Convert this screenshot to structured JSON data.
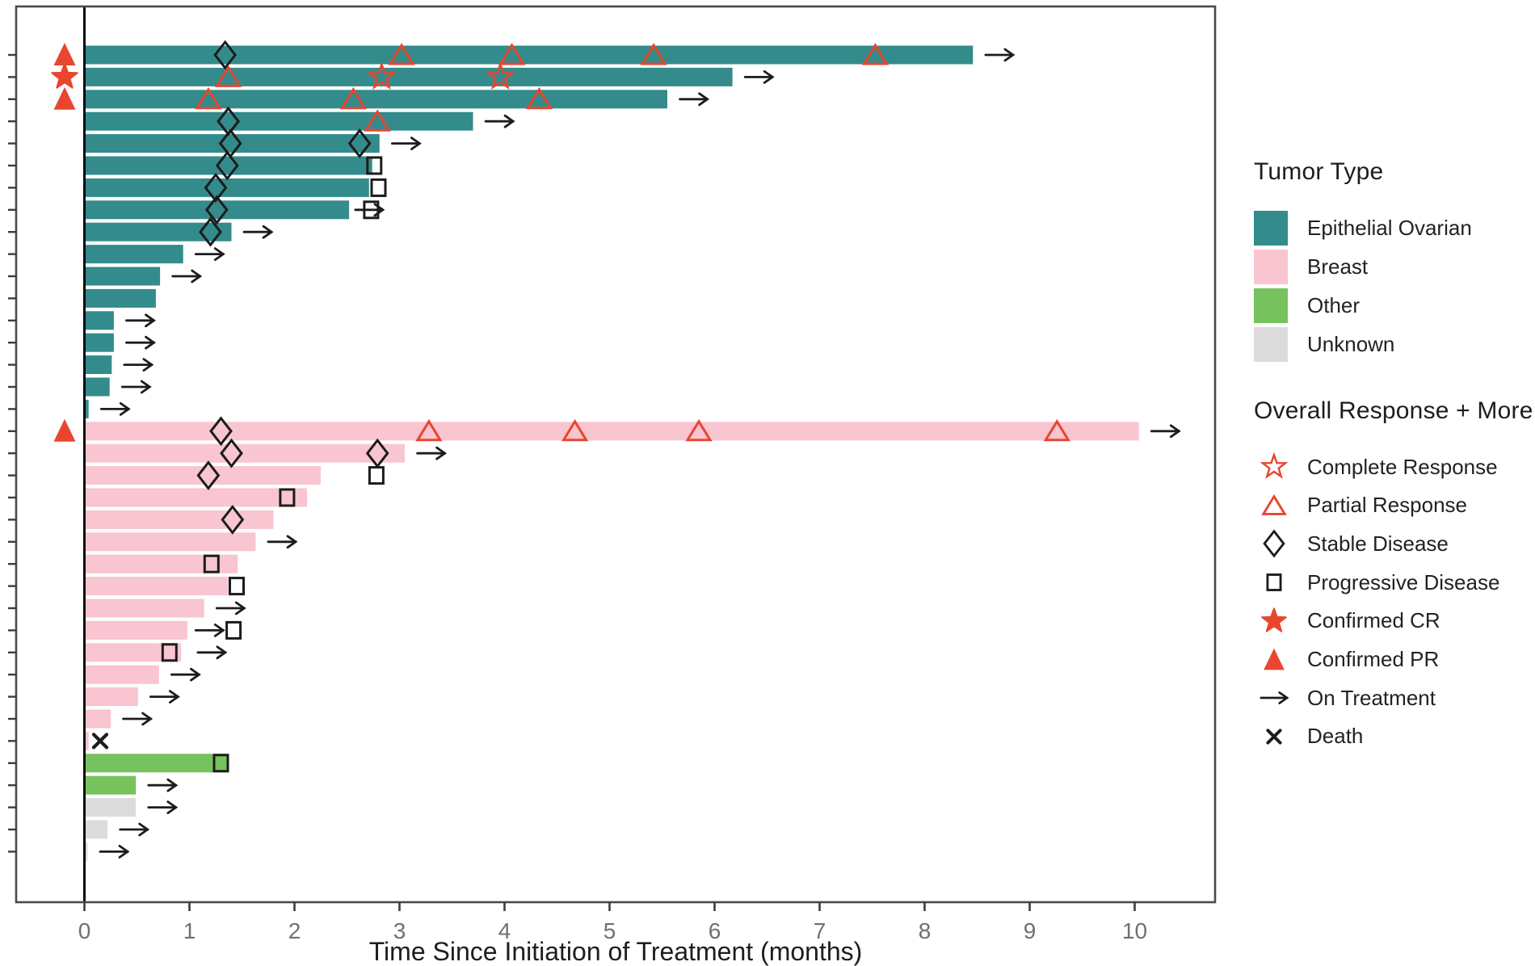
{
  "chart_data": {
    "type": "bar",
    "subtype": "swimmer-plot",
    "xlabel": "Time Since Initiation of Treatment (months)",
    "x_ticks": [
      "0",
      "1",
      "2",
      "3",
      "4",
      "5",
      "6",
      "7",
      "8",
      "9",
      "10"
    ],
    "xlim": [
      -0.65,
      10.75
    ],
    "grid": false,
    "colors": {
      "Epithelial Ovarian": "#348b8b",
      "Breast": "#f8c5d1",
      "Other": "#76c25d",
      "Unknown": "#dcdcdc",
      "response_red": "#e8462f",
      "marker_black": "#1c1c1c",
      "axis_text": "#707070",
      "spine": "#4a4a4a"
    },
    "legend_tumor": {
      "title": "Tumor Type",
      "entries": [
        {
          "label": "Epithelial Ovarian",
          "color": "#348b8b"
        },
        {
          "label": "Breast",
          "color": "#f8c5d1"
        },
        {
          "label": "Other",
          "color": "#76c25d"
        },
        {
          "label": "Unknown",
          "color": "#dcdcdc"
        }
      ]
    },
    "legend_response": {
      "title": "Overall Response + More",
      "entries": [
        {
          "marker": "complete-response",
          "label": "Complete Response"
        },
        {
          "marker": "partial-response",
          "label": "Partial Response"
        },
        {
          "marker": "stable-disease",
          "label": "Stable Disease"
        },
        {
          "marker": "progressive-disease",
          "label": "Progressive Disease"
        },
        {
          "marker": "confirmed-cr",
          "label": "Confirmed CR"
        },
        {
          "marker": "confirmed-pr",
          "label": "Confirmed PR"
        },
        {
          "marker": "on-treatment",
          "label": "On Treatment"
        },
        {
          "marker": "death",
          "label": "Death"
        }
      ]
    },
    "rows": [
      {
        "tumor": "Epithelial Ovarian",
        "months": 8.46,
        "on_treatment": true,
        "confirmed": "PR",
        "events": [
          {
            "type": "Stable Disease",
            "month": 1.34
          },
          {
            "type": "Partial Response",
            "month": 3.02
          },
          {
            "type": "Partial Response",
            "month": 4.07
          },
          {
            "type": "Partial Response",
            "month": 5.42
          },
          {
            "type": "Partial Response",
            "month": 7.53
          }
        ]
      },
      {
        "tumor": "Epithelial Ovarian",
        "months": 6.17,
        "on_treatment": true,
        "confirmed": "CR",
        "events": [
          {
            "type": "Partial Response",
            "month": 1.37
          },
          {
            "type": "Complete Response",
            "month": 2.83
          },
          {
            "type": "Complete Response",
            "month": 3.96
          }
        ]
      },
      {
        "tumor": "Epithelial Ovarian",
        "months": 5.55,
        "on_treatment": true,
        "confirmed": "PR",
        "events": [
          {
            "type": "Partial Response",
            "month": 1.18
          },
          {
            "type": "Partial Response",
            "month": 2.56
          },
          {
            "type": "Partial Response",
            "month": 4.33
          }
        ]
      },
      {
        "tumor": "Epithelial Ovarian",
        "months": 3.7,
        "on_treatment": true,
        "events": [
          {
            "type": "Stable Disease",
            "month": 1.37
          },
          {
            "type": "Partial Response",
            "month": 2.79
          }
        ]
      },
      {
        "tumor": "Epithelial Ovarian",
        "months": 2.81,
        "on_treatment": true,
        "events": [
          {
            "type": "Stable Disease",
            "month": 1.39
          },
          {
            "type": "Stable Disease",
            "month": 2.62
          }
        ]
      },
      {
        "tumor": "Epithelial Ovarian",
        "months": 2.74,
        "events": [
          {
            "type": "Stable Disease",
            "month": 1.36
          },
          {
            "type": "Progressive Disease",
            "month": 2.76
          }
        ]
      },
      {
        "tumor": "Epithelial Ovarian",
        "months": 2.71,
        "events": [
          {
            "type": "Stable Disease",
            "month": 1.25
          },
          {
            "type": "Progressive Disease",
            "month": 2.8
          }
        ]
      },
      {
        "tumor": "Epithelial Ovarian",
        "months": 2.52,
        "on_treatment": true,
        "arrow_month": 2.58,
        "events": [
          {
            "type": "Stable Disease",
            "month": 1.26
          },
          {
            "type": "Progressive Disease",
            "month": 2.73
          }
        ]
      },
      {
        "tumor": "Epithelial Ovarian",
        "months": 1.4,
        "on_treatment": true,
        "events": [
          {
            "type": "Stable Disease",
            "month": 1.2
          }
        ]
      },
      {
        "tumor": "Epithelial Ovarian",
        "months": 0.94,
        "on_treatment": true,
        "events": []
      },
      {
        "tumor": "Epithelial Ovarian",
        "months": 0.72,
        "on_treatment": true,
        "events": []
      },
      {
        "tumor": "Epithelial Ovarian",
        "months": 0.68,
        "events": []
      },
      {
        "tumor": "Epithelial Ovarian",
        "months": 0.28,
        "on_treatment": true,
        "events": []
      },
      {
        "tumor": "Epithelial Ovarian",
        "months": 0.28,
        "on_treatment": true,
        "events": []
      },
      {
        "tumor": "Epithelial Ovarian",
        "months": 0.26,
        "on_treatment": true,
        "events": []
      },
      {
        "tumor": "Epithelial Ovarian",
        "months": 0.24,
        "on_treatment": true,
        "events": []
      },
      {
        "tumor": "Epithelial Ovarian",
        "months": 0.04,
        "on_treatment": true,
        "events": []
      },
      {
        "tumor": "Breast",
        "months": 10.04,
        "on_treatment": true,
        "confirmed": "PR",
        "events": [
          {
            "type": "Stable Disease",
            "month": 1.3
          },
          {
            "type": "Partial Response",
            "month": 3.28
          },
          {
            "type": "Partial Response",
            "month": 4.67
          },
          {
            "type": "Partial Response",
            "month": 5.85
          },
          {
            "type": "Partial Response",
            "month": 9.26
          }
        ]
      },
      {
        "tumor": "Breast",
        "months": 3.05,
        "on_treatment": true,
        "events": [
          {
            "type": "Stable Disease",
            "month": 1.4
          },
          {
            "type": "Stable Disease",
            "month": 2.79
          }
        ]
      },
      {
        "tumor": "Breast",
        "months": 2.25,
        "events": [
          {
            "type": "Stable Disease",
            "month": 1.18
          },
          {
            "type": "Progressive Disease",
            "month": 2.78
          }
        ]
      },
      {
        "tumor": "Breast",
        "months": 2.12,
        "events": [
          {
            "type": "Progressive Disease",
            "month": 1.93
          }
        ]
      },
      {
        "tumor": "Breast",
        "months": 1.8,
        "events": [
          {
            "type": "Stable Disease",
            "month": 1.41
          }
        ]
      },
      {
        "tumor": "Breast",
        "months": 1.63,
        "on_treatment": true,
        "events": []
      },
      {
        "tumor": "Breast",
        "months": 1.46,
        "events": [
          {
            "type": "Progressive Disease",
            "month": 1.21
          }
        ]
      },
      {
        "tumor": "Breast",
        "months": 1.37,
        "events": [
          {
            "type": "Progressive Disease",
            "month": 1.45
          }
        ]
      },
      {
        "tumor": "Breast",
        "months": 1.14,
        "on_treatment": true,
        "events": []
      },
      {
        "tumor": "Breast",
        "months": 0.98,
        "on_treatment": true,
        "arrow_month": 1.06,
        "events": [
          {
            "type": "Progressive Disease",
            "month": 1.42
          }
        ]
      },
      {
        "tumor": "Breast",
        "months": 0.92,
        "on_treatment": true,
        "arrow_month": 1.08,
        "events": [
          {
            "type": "Progressive Disease",
            "month": 0.81
          }
        ]
      },
      {
        "tumor": "Breast",
        "months": 0.71,
        "on_treatment": true,
        "events": []
      },
      {
        "tumor": "Breast",
        "months": 0.51,
        "on_treatment": true,
        "events": []
      },
      {
        "tumor": "Breast",
        "months": 0.25,
        "on_treatment": true,
        "events": []
      },
      {
        "tumor": "Breast",
        "months": 0.04,
        "events": [
          {
            "type": "Death",
            "month": 0.15
          }
        ]
      },
      {
        "tumor": "Other",
        "months": 1.37,
        "events": [
          {
            "type": "Progressive Disease",
            "month": 1.3
          }
        ]
      },
      {
        "tumor": "Other",
        "months": 0.49,
        "on_treatment": true,
        "events": []
      },
      {
        "tumor": "Unknown",
        "months": 0.49,
        "on_treatment": true,
        "events": []
      },
      {
        "tumor": "Unknown",
        "months": 0.22,
        "on_treatment": true,
        "events": []
      },
      {
        "tumor": "Unknown",
        "months": 0.03,
        "on_treatment": true,
        "events": []
      }
    ]
  }
}
